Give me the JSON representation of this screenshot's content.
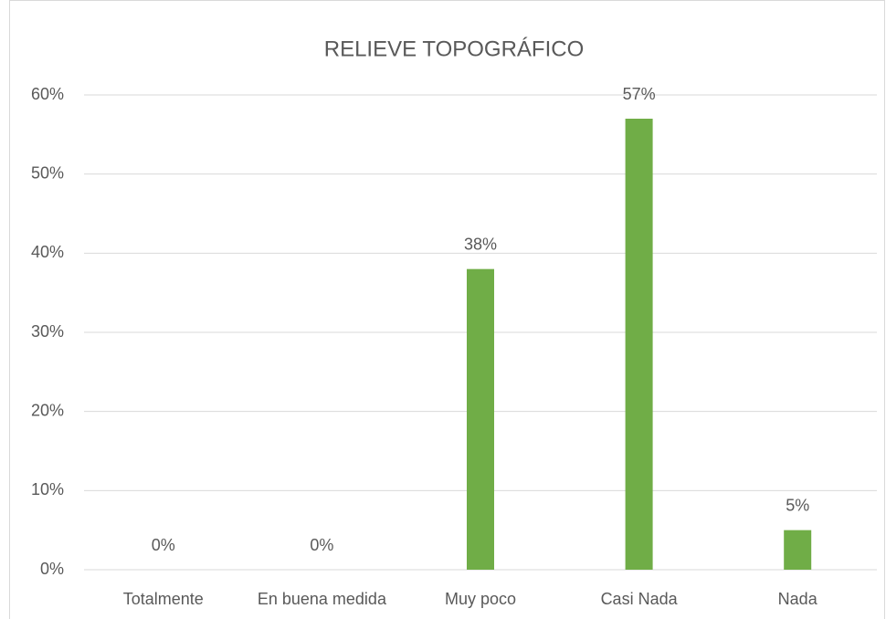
{
  "chart_data": {
    "type": "bar",
    "title": "RELIEVE TOPOGRÁFICO",
    "categories": [
      "Totalmente",
      "En buena medida",
      "Muy poco",
      "Casi Nada",
      "Nada"
    ],
    "values": [
      0,
      0,
      38,
      57,
      5
    ],
    "value_labels": [
      "0%",
      "0%",
      "38%",
      "57%",
      "5%"
    ],
    "color": "#70ad47",
    "ylim": [
      0,
      60
    ],
    "yticks": [
      {
        "value": 0,
        "label": "0%"
      },
      {
        "value": 10,
        "label": "10%"
      },
      {
        "value": 20,
        "label": "20%"
      },
      {
        "value": 30,
        "label": "30%"
      },
      {
        "value": 40,
        "label": "40%"
      },
      {
        "value": 50,
        "label": "50%"
      },
      {
        "value": 60,
        "label": "60%"
      }
    ],
    "grid": true
  }
}
